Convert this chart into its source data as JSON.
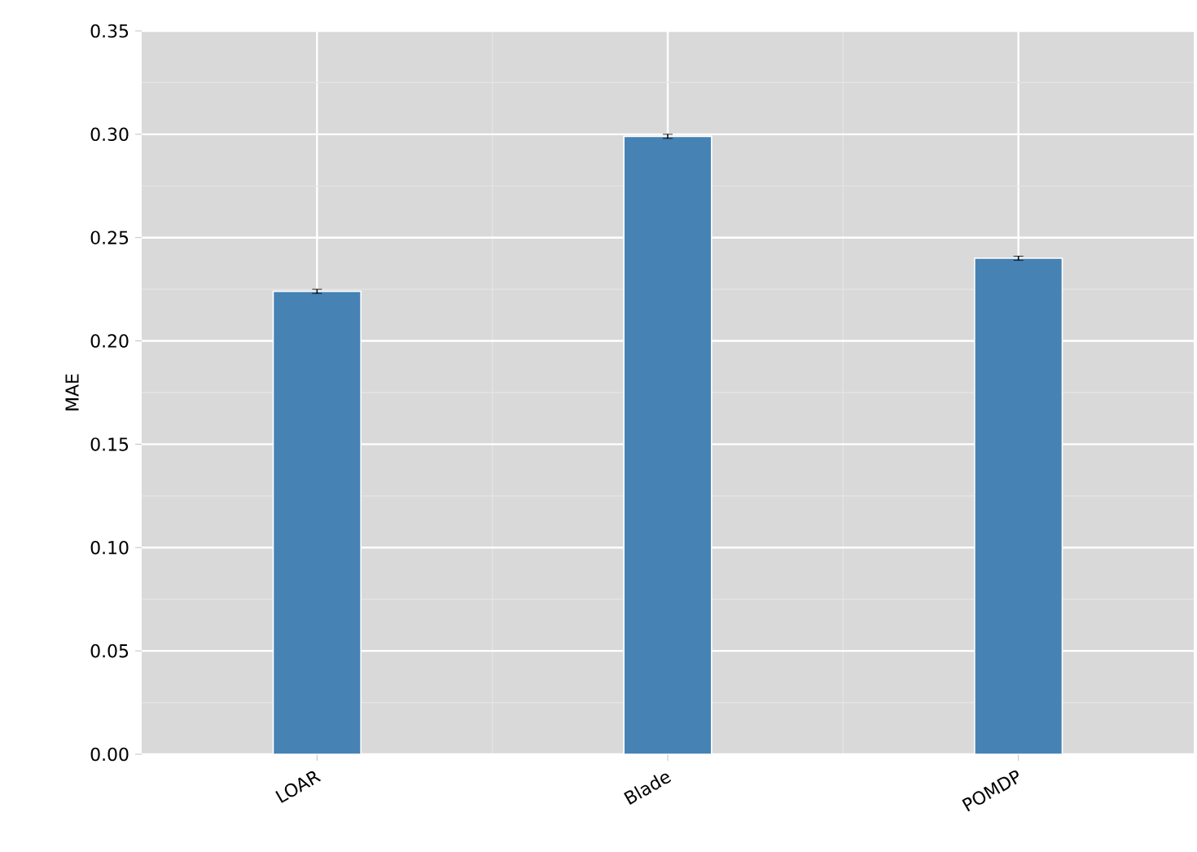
{
  "chart_data": {
    "type": "bar",
    "ylabel": "MAE",
    "categories": [
      "LOAR",
      "Blade",
      "POMDP"
    ],
    "values": [
      0.224,
      0.299,
      0.24
    ],
    "errors": [
      0.001,
      0.001,
      0.001
    ],
    "color": "#4682b4",
    "ylim": [
      0,
      0.35
    ],
    "yticks": [
      {
        "value": 0,
        "label": "0.00"
      },
      {
        "value": 0.05,
        "label": "0.05"
      },
      {
        "value": 0.1,
        "label": "0.10"
      },
      {
        "value": 0.15,
        "label": "0.15"
      },
      {
        "value": 0.2,
        "label": "0.20"
      },
      {
        "value": 0.25,
        "label": "0.25"
      },
      {
        "value": 0.3,
        "label": "0.30"
      },
      {
        "value": 0.35,
        "label": "0.35"
      }
    ],
    "grid": true
  }
}
